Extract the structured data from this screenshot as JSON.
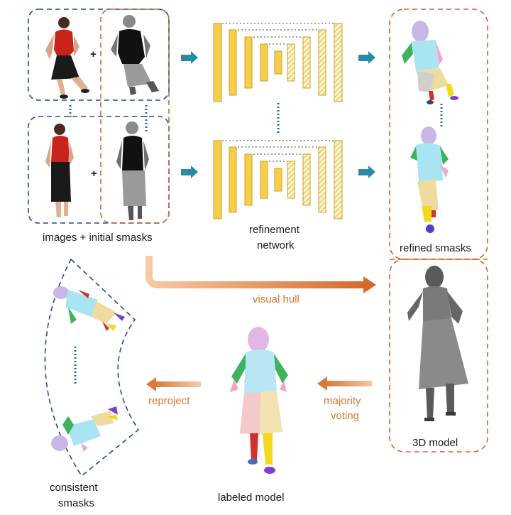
{
  "labels": {
    "images_initial": "images + initial smasks",
    "refinement_1": "refinement",
    "refinement_2": "network",
    "refined": "refined smasks",
    "visual_hull": "visual hull",
    "model_3d": "3D model",
    "majority_1": "majority",
    "majority_2": "voting",
    "labeled_model": "labeled model",
    "reproject": "reproject",
    "consistent_1": "consistent",
    "consistent_2": "smasks"
  },
  "symbols": {
    "plus": "+"
  },
  "colors": {
    "blue_dash": "#1f4e8c",
    "orange_dash": "#c8692a",
    "network_fill": "#f8cd4a",
    "network_stroke": "#c9a227",
    "teal_arrow": "#2a8aa5",
    "orange_arrow": "#e8935a",
    "label_orange": "#d9752f"
  }
}
